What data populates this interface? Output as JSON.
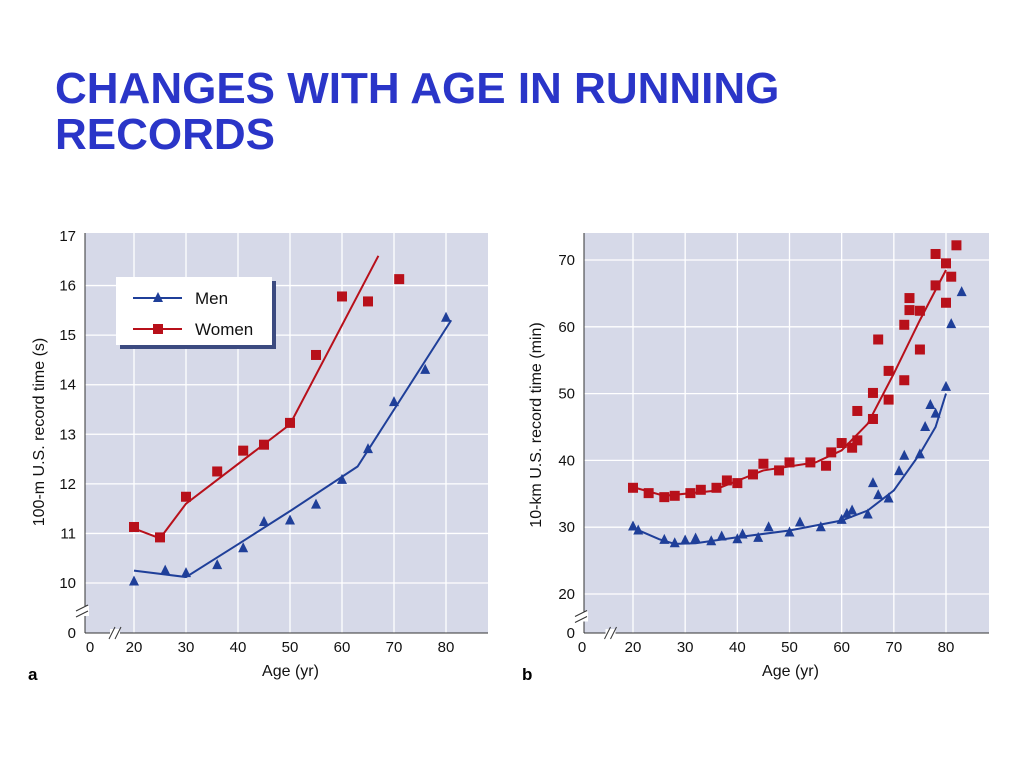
{
  "title": "CHANGES WITH AGE IN RUNNING RECORDS",
  "colors": {
    "title": "#2a35c8",
    "men": "#1f3f99",
    "women": "#b8101a",
    "plot_bg": "#d6d9e8"
  },
  "chart_data": [
    {
      "type": "scatter",
      "panel_label": "a",
      "xlabel": "Age (yr)",
      "ylabel": "100-m U.S. record time (s)",
      "xticks": [
        "0",
        "20",
        "30",
        "40",
        "50",
        "60",
        "70",
        "80"
      ],
      "yticks": [
        "0",
        "10",
        "11",
        "12",
        "13",
        "14",
        "15",
        "16",
        "17"
      ],
      "axis_break": true,
      "xlim": [
        20,
        88
      ],
      "ylim": [
        10,
        17
      ],
      "grid": true,
      "legend": {
        "placement": "top-left",
        "entries": [
          "Men",
          "Women"
        ]
      },
      "series": [
        {
          "name": "Men",
          "marker": "triangle",
          "points": [
            [
              20,
              10.03
            ],
            [
              26,
              10.25
            ],
            [
              30,
              10.2
            ],
            [
              36,
              10.36
            ],
            [
              41,
              10.7
            ],
            [
              45,
              11.23
            ],
            [
              50,
              11.26
            ],
            [
              55,
              11.58
            ],
            [
              60,
              12.08
            ],
            [
              65,
              12.7
            ],
            [
              70,
              13.65
            ],
            [
              76,
              14.3
            ],
            [
              80,
              15.35
            ]
          ],
          "fit": [
            [
              20,
              10.25
            ],
            [
              30,
              10.12
            ],
            [
              40,
              10.78
            ],
            [
              50,
              11.45
            ],
            [
              63,
              12.35
            ],
            [
              81,
              15.3
            ]
          ]
        },
        {
          "name": "Women",
          "marker": "square",
          "points": [
            [
              20,
              11.13
            ],
            [
              25,
              10.92
            ],
            [
              30,
              11.74
            ],
            [
              36,
              12.25
            ],
            [
              41,
              12.67
            ],
            [
              45,
              12.79
            ],
            [
              50,
              13.23
            ],
            [
              55,
              14.6
            ],
            [
              60,
              15.78
            ],
            [
              65,
              15.68
            ],
            [
              71,
              16.13
            ]
          ],
          "fit": [
            [
              20,
              11.1
            ],
            [
              25,
              10.9
            ],
            [
              30,
              11.6
            ],
            [
              50,
              13.2
            ],
            [
              67,
              16.6
            ]
          ]
        }
      ]
    },
    {
      "type": "scatter",
      "panel_label": "b",
      "xlabel": "Age (yr)",
      "ylabel": "10-km U.S. record time (min)",
      "xticks": [
        "0",
        "20",
        "30",
        "40",
        "50",
        "60",
        "70",
        "80"
      ],
      "yticks": [
        "0",
        "20",
        "30",
        "40",
        "50",
        "60",
        "70"
      ],
      "axis_break": true,
      "xlim": [
        20,
        89
      ],
      "ylim": [
        20,
        75
      ],
      "grid": true,
      "series": [
        {
          "name": "Men",
          "marker": "triangle",
          "points": [
            [
              20,
              30.1
            ],
            [
              21,
              29.5
            ],
            [
              26,
              28.1
            ],
            [
              28,
              27.6
            ],
            [
              30,
              28
            ],
            [
              32,
              28.3
            ],
            [
              35,
              27.9
            ],
            [
              37,
              28.6
            ],
            [
              40,
              28.2
            ],
            [
              41,
              28.9
            ],
            [
              44,
              28.4
            ],
            [
              46,
              30
            ],
            [
              50,
              29.2
            ],
            [
              52,
              30.7
            ],
            [
              56,
              30
            ],
            [
              60,
              31.1
            ],
            [
              61,
              32
            ],
            [
              62,
              32.5
            ],
            [
              65,
              31.9
            ],
            [
              66,
              36.6
            ],
            [
              67,
              34.8
            ],
            [
              69,
              34.3
            ],
            [
              71,
              38.4
            ],
            [
              72,
              40.7
            ],
            [
              75,
              40.9
            ],
            [
              76,
              45
            ],
            [
              77,
              48.3
            ],
            [
              78,
              47
            ],
            [
              80,
              51
            ],
            [
              81,
              60.4
            ],
            [
              83,
              65.2
            ]
          ],
          "fit": [
            [
              20,
              29.9
            ],
            [
              25,
              28.2
            ],
            [
              28,
              27.5
            ],
            [
              32,
              27.6
            ],
            [
              40,
              28.5
            ],
            [
              50,
              29.5
            ],
            [
              60,
              31
            ],
            [
              65,
              32.5
            ],
            [
              70,
              35.5
            ],
            [
              75,
              41
            ],
            [
              78,
              45
            ],
            [
              80,
              50
            ]
          ]
        },
        {
          "name": "Women",
          "marker": "square",
          "points": [
            [
              20,
              35.9
            ],
            [
              23,
              35.1
            ],
            [
              26,
              34.5
            ],
            [
              28,
              34.7
            ],
            [
              31,
              35.1
            ],
            [
              33,
              35.6
            ],
            [
              36,
              35.9
            ],
            [
              38,
              37
            ],
            [
              40,
              36.6
            ],
            [
              43,
              37.9
            ],
            [
              45,
              39.5
            ],
            [
              48,
              38.5
            ],
            [
              50,
              39.7
            ],
            [
              54,
              39.7
            ],
            [
              57,
              39.2
            ],
            [
              58,
              41.2
            ],
            [
              60,
              42.6
            ],
            [
              62,
              41.9
            ],
            [
              63,
              43
            ],
            [
              63,
              47.4
            ],
            [
              66,
              46.2
            ],
            [
              66,
              50.1
            ],
            [
              67,
              58.1
            ],
            [
              69,
              49.1
            ],
            [
              69,
              53.4
            ],
            [
              72,
              52
            ],
            [
              72,
              60.3
            ],
            [
              73,
              62.5
            ],
            [
              73,
              64.3
            ],
            [
              75,
              56.6
            ],
            [
              75,
              62.4
            ],
            [
              78,
              66.2
            ],
            [
              78,
              70.9
            ],
            [
              80,
              69.5
            ],
            [
              80,
              63.6
            ],
            [
              81,
              67.5
            ],
            [
              82,
              72.2
            ]
          ],
          "fit": [
            [
              20,
              36
            ],
            [
              26,
              34.7
            ],
            [
              35,
              35.4
            ],
            [
              45,
              38.5
            ],
            [
              55,
              39.7
            ],
            [
              60,
              41.5
            ],
            [
              65,
              45.5
            ],
            [
              70,
              53
            ],
            [
              75,
              61
            ],
            [
              80,
              68.5
            ]
          ]
        }
      ]
    }
  ]
}
